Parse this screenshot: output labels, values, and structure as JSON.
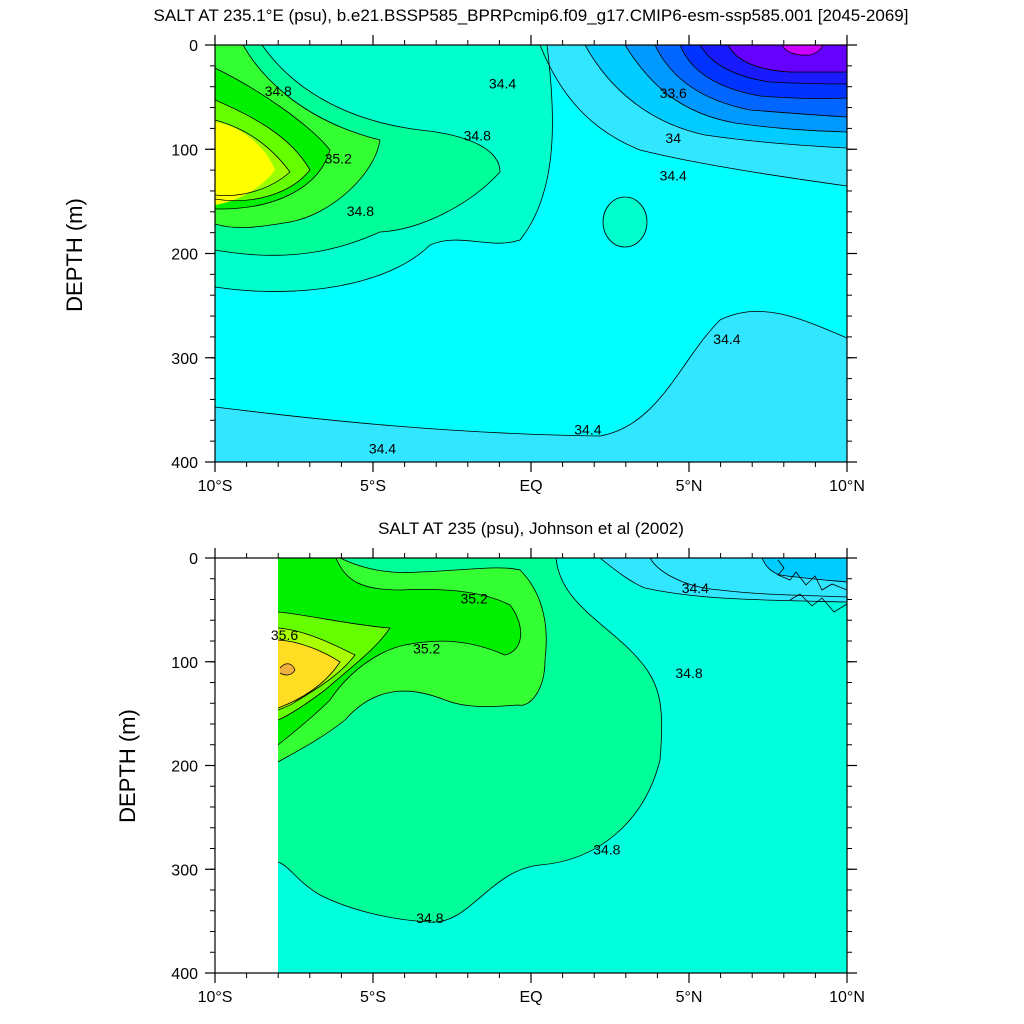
{
  "chart_data": [
    {
      "type": "contour",
      "title": "SALT AT 235.1°E (psu), b.e21.BSSP585_BPRPcmip6.f09_g17.CMIP6-esm-ssp585.001 [2045-2069]",
      "xlabel": "",
      "ylabel": "DEPTH (m)",
      "x_ticks": [
        "10°S",
        "5°S",
        "EQ",
        "5°N",
        "10°N"
      ],
      "x_tick_values": [
        -10,
        -5,
        0,
        5,
        10
      ],
      "y_ticks": [
        "0",
        "100",
        "200",
        "300",
        "400"
      ],
      "y_tick_values": [
        0,
        100,
        200,
        300,
        400
      ],
      "xlim": [
        -10,
        10
      ],
      "ylim": [
        400,
        0
      ],
      "y_reversed": true,
      "contour_interval": 0.2,
      "contour_labels": [
        {
          "text": "34.8",
          "x": -8.0,
          "depth": 45
        },
        {
          "text": "34.4",
          "x": -0.9,
          "depth": 38
        },
        {
          "text": "33.6",
          "x": 4.5,
          "depth": 47
        },
        {
          "text": "34.8",
          "x": -1.7,
          "depth": 88
        },
        {
          "text": "35.2",
          "x": -6.1,
          "depth": 110
        },
        {
          "text": "34",
          "x": 4.5,
          "depth": 90
        },
        {
          "text": "34.4",
          "x": 4.5,
          "depth": 126
        },
        {
          "text": "34.8",
          "x": -5.4,
          "depth": 160
        },
        {
          "text": "34.4",
          "x": 6.2,
          "depth": 283
        },
        {
          "text": "34.4",
          "x": 1.8,
          "depth": 370
        },
        {
          "text": "34.4",
          "x": -4.7,
          "depth": 388
        }
      ],
      "features": [
        {
          "description": "salinity maximum core",
          "x": -9.6,
          "depth": 125,
          "min_value": 35.8
        },
        {
          "description": "fresh surface pool",
          "x": 8.5,
          "depth": 5,
          "max_value": 33.2
        }
      ]
    },
    {
      "type": "contour",
      "title": "SALT AT 235 (psu), Johnson et al (2002)",
      "xlabel": "",
      "ylabel": "DEPTH (m)",
      "x_ticks": [
        "10°S",
        "5°S",
        "EQ",
        "5°N",
        "10°N"
      ],
      "x_tick_values": [
        -10,
        -5,
        0,
        5,
        10
      ],
      "y_ticks": [
        "0",
        "100",
        "200",
        "300",
        "400"
      ],
      "y_tick_values": [
        0,
        100,
        200,
        300,
        400
      ],
      "xlim": [
        -10,
        10
      ],
      "ylim": [
        400,
        0
      ],
      "y_reversed": true,
      "data_xlim": [
        -8,
        10
      ],
      "contour_interval": 0.2,
      "contour_labels": [
        {
          "text": "35.2",
          "x": -1.8,
          "depth": 40
        },
        {
          "text": "34.4",
          "x": 5.2,
          "depth": 30
        },
        {
          "text": "35.6",
          "x": -7.8,
          "depth": 75
        },
        {
          "text": "35.2",
          "x": -3.3,
          "depth": 88
        },
        {
          "text": "34.8",
          "x": 5.0,
          "depth": 112
        },
        {
          "text": "34.8",
          "x": 2.4,
          "depth": 282
        },
        {
          "text": "34.8",
          "x": -3.2,
          "depth": 348
        }
      ],
      "features": [
        {
          "description": "salinity maximum core",
          "x": -7.6,
          "depth": 107,
          "min_value": 35.8
        }
      ]
    }
  ]
}
